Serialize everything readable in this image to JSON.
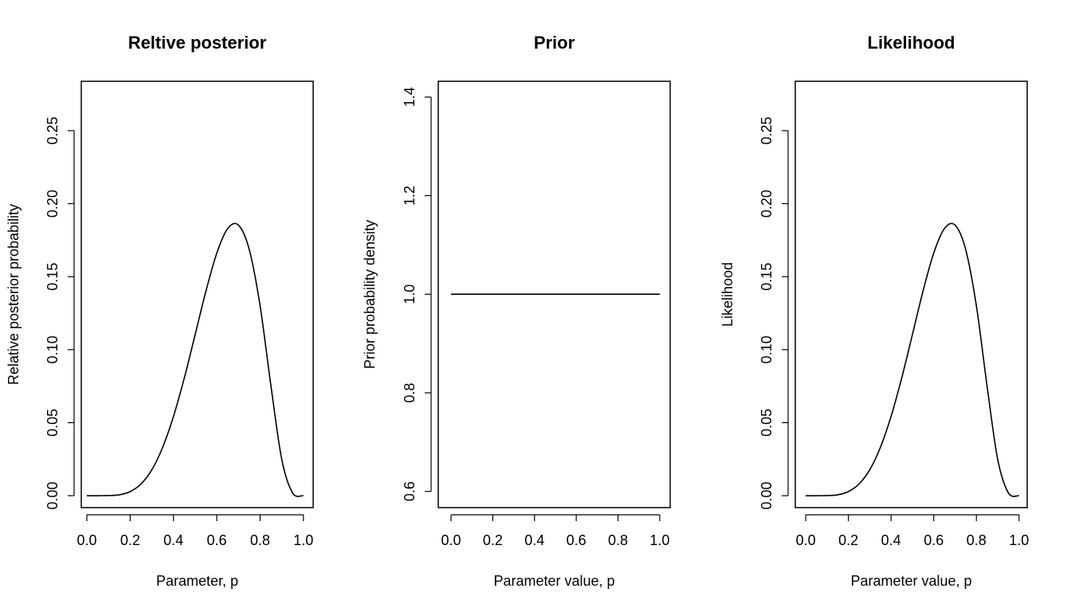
{
  "chart_data": [
    {
      "type": "line",
      "title": "Reltive posterior",
      "xlabel": "Parameter, p",
      "ylabel": "Relative posterior probability",
      "xlim": [
        0,
        1
      ],
      "ylim": [
        0,
        0.273
      ],
      "xticks": [
        "0.0",
        "0.2",
        "0.4",
        "0.6",
        "0.8",
        "1.0"
      ],
      "yticks": [
        "0.00",
        "0.05",
        "0.10",
        "0.15",
        "0.20",
        "0.25"
      ],
      "grid": false,
      "series": [
        {
          "x": [
            0.0,
            0.05,
            0.1,
            0.15,
            0.2,
            0.25,
            0.3,
            0.35,
            0.4,
            0.45,
            0.5,
            0.55,
            0.6,
            0.65,
            0.7,
            0.75,
            0.8,
            0.85,
            0.9,
            0.95,
            1.0
          ],
          "y": [
            0.0,
            0.0,
            0.0001,
            0.0006,
            0.0028,
            0.008,
            0.0177,
            0.0331,
            0.0543,
            0.0806,
            0.1103,
            0.1402,
            0.1661,
            0.1829,
            0.1853,
            0.1685,
            0.13,
            0.0752,
            0.0248,
            0.0019,
            0.0
          ]
        }
      ]
    },
    {
      "type": "line",
      "title": "Prior",
      "xlabel": "Parameter value, p",
      "ylabel": "Prior probability density",
      "xlim": [
        0,
        1
      ],
      "ylim": [
        0.6,
        1.4
      ],
      "xticks": [
        "0.0",
        "0.2",
        "0.4",
        "0.6",
        "0.8",
        "1.0"
      ],
      "yticks": [
        "0.6",
        "0.8",
        "1.0",
        "1.2",
        "1.4"
      ],
      "grid": false,
      "series": [
        {
          "x": [
            0.0,
            1.0
          ],
          "y": [
            1.0,
            1.0
          ]
        }
      ]
    },
    {
      "type": "line",
      "title": "Likelihood",
      "xlabel": "Parameter value, p",
      "ylabel": "Likelihood",
      "xlim": [
        0,
        1
      ],
      "ylim": [
        0,
        0.273
      ],
      "xticks": [
        "0.0",
        "0.2",
        "0.4",
        "0.6",
        "0.8",
        "1.0"
      ],
      "yticks": [
        "0.00",
        "0.05",
        "0.10",
        "0.15",
        "0.20",
        "0.25"
      ],
      "grid": false,
      "series": [
        {
          "x": [
            0.0,
            0.05,
            0.1,
            0.15,
            0.2,
            0.25,
            0.3,
            0.35,
            0.4,
            0.45,
            0.5,
            0.55,
            0.6,
            0.65,
            0.7,
            0.75,
            0.8,
            0.85,
            0.9,
            0.95,
            1.0
          ],
          "y": [
            0.0,
            0.0,
            0.0001,
            0.0006,
            0.0028,
            0.008,
            0.0177,
            0.0331,
            0.0543,
            0.0806,
            0.1103,
            0.1402,
            0.1661,
            0.1829,
            0.1853,
            0.1685,
            0.13,
            0.0752,
            0.0248,
            0.0019,
            0.0
          ]
        }
      ]
    }
  ]
}
